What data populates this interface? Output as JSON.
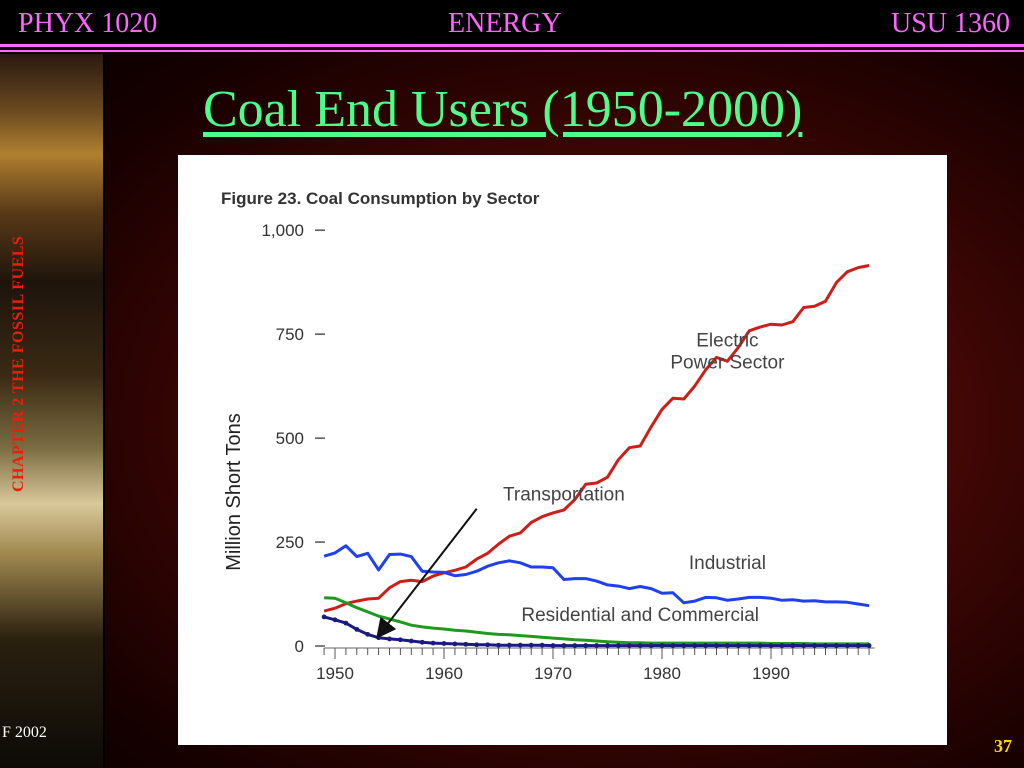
{
  "header": {
    "left": "PHYX 1020",
    "center": "ENERGY",
    "right": "USU 1360"
  },
  "sidebar": {
    "vertical_text": "CHAPTER 2  THE  FOSSIL FUELS"
  },
  "footer": {
    "left_text": "F 2002",
    "page_number": "37"
  },
  "slide": {
    "title": "Coal End Users (1950-2000)"
  },
  "colors": {
    "header_text": "#ff66ff",
    "title": "#4dff88",
    "sidebar_text": "#e8200a",
    "page_number": "#ffd700",
    "electric": "#cc1f1a",
    "industrial": "#1f3ff0",
    "residential": "#1e9a1e",
    "transportation": "#1a1a80"
  },
  "chart_data": {
    "type": "line",
    "title": "Figure 23.  Coal Consumption by Sector",
    "ylabel": "Million Short Tons",
    "xlabel": "",
    "xlim": [
      1950,
      2000
    ],
    "ylim": [
      0,
      1000
    ],
    "yticks": [
      {
        "value": 1000,
        "label": "1,000"
      },
      {
        "value": 750,
        "label": "750"
      },
      {
        "value": 500,
        "label": "500"
      },
      {
        "value": 250,
        "label": "250"
      },
      {
        "value": 0,
        "label": "0"
      }
    ],
    "xticks": [
      {
        "value": 1950,
        "label": "1950"
      },
      {
        "value": 1960,
        "label": "1960"
      },
      {
        "value": 1970,
        "label": "1970"
      },
      {
        "value": 1980,
        "label": "1980"
      },
      {
        "value": 1990,
        "label": "1990"
      }
    ],
    "grid": false,
    "series": [
      {
        "name": "Electric Power Sector",
        "label_lines": [
          "Electric",
          "Power Sector"
        ],
        "label_pos": [
          1986,
          720
        ],
        "color": "#cc1f1a",
        "x": [
          1949,
          1950,
          1951,
          1952,
          1953,
          1954,
          1955,
          1956,
          1957,
          1958,
          1959,
          1960,
          1961,
          1962,
          1963,
          1964,
          1965,
          1966,
          1967,
          1968,
          1969,
          1970,
          1971,
          1972,
          1973,
          1974,
          1975,
          1976,
          1977,
          1978,
          1979,
          1980,
          1981,
          1982,
          1983,
          1984,
          1985,
          1986,
          1987,
          1988,
          1989,
          1990,
          1991,
          1992,
          1993,
          1994,
          1995,
          1996,
          1997,
          1998,
          1999
        ],
        "y": [
          84,
          91,
          102,
          108,
          113,
          115,
          140,
          155,
          158,
          155,
          168,
          176,
          182,
          190,
          209,
          223,
          245,
          264,
          272,
          297,
          311,
          320,
          327,
          352,
          389,
          392,
          406,
          448,
          477,
          481,
          527,
          569,
          596,
          594,
          625,
          664,
          694,
          685,
          718,
          758,
          767,
          774,
          772,
          780,
          814,
          817,
          829,
          874,
          900,
          910,
          915
        ]
      },
      {
        "name": "Industrial",
        "label_pos": [
          1986,
          185
        ],
        "color": "#1f3ff0",
        "x": [
          1949,
          1950,
          1951,
          1952,
          1953,
          1954,
          1955,
          1956,
          1957,
          1958,
          1959,
          1960,
          1961,
          1962,
          1963,
          1964,
          1965,
          1966,
          1967,
          1968,
          1969,
          1970,
          1971,
          1972,
          1973,
          1974,
          1975,
          1976,
          1977,
          1978,
          1979,
          1980,
          1981,
          1982,
          1983,
          1984,
          1985,
          1986,
          1987,
          1988,
          1989,
          1990,
          1991,
          1992,
          1993,
          1994,
          1995,
          1996,
          1997,
          1998,
          1999
        ],
        "y": [
          216,
          224,
          241,
          215,
          223,
          183,
          220,
          221,
          215,
          180,
          178,
          177,
          169,
          172,
          180,
          192,
          200,
          205,
          200,
          190,
          190,
          188,
          160,
          162,
          162,
          156,
          147,
          144,
          138,
          143,
          138,
          127,
          128,
          104,
          108,
          117,
          116,
          110,
          113,
          117,
          117,
          115,
          110,
          111,
          108,
          109,
          106,
          106,
          105,
          101,
          97
        ]
      },
      {
        "name": "Residential and Commercial",
        "label_pos": [
          1978,
          60
        ],
        "color": "#1e9a1e",
        "x": [
          1949,
          1950,
          1951,
          1952,
          1953,
          1954,
          1955,
          1956,
          1957,
          1958,
          1959,
          1960,
          1961,
          1962,
          1963,
          1964,
          1965,
          1966,
          1967,
          1968,
          1969,
          1970,
          1971,
          1972,
          1973,
          1974,
          1975,
          1976,
          1977,
          1978,
          1979,
          1980,
          1981,
          1982,
          1983,
          1984,
          1985,
          1986,
          1987,
          1988,
          1989,
          1990,
          1991,
          1992,
          1993,
          1994,
          1995,
          1996,
          1997,
          1998,
          1999
        ],
        "y": [
          116,
          115,
          104,
          92,
          82,
          72,
          65,
          58,
          50,
          46,
          43,
          41,
          38,
          36,
          33,
          30,
          28,
          27,
          25,
          23,
          21,
          19,
          17,
          15,
          14,
          12,
          10,
          9,
          8,
          8,
          7,
          7,
          7,
          7,
          7,
          7,
          7,
          7,
          7,
          7,
          7,
          6,
          6,
          6,
          6,
          5,
          5,
          5,
          5,
          5,
          5
        ]
      },
      {
        "name": "Transportation",
        "label_pos": [
          1971,
          350
        ],
        "color": "#1a1a80",
        "x": [
          1949,
          1950,
          1951,
          1952,
          1953,
          1954,
          1955,
          1956,
          1957,
          1958,
          1959,
          1960,
          1961,
          1962,
          1963,
          1964,
          1965,
          1966,
          1967,
          1968,
          1969,
          1970,
          1971,
          1972,
          1973,
          1974,
          1975,
          1976,
          1977,
          1978,
          1979,
          1980,
          1981,
          1982,
          1983,
          1984,
          1985,
          1986,
          1987,
          1988,
          1989,
          1990,
          1991,
          1992,
          1993,
          1994,
          1995,
          1996,
          1997,
          1998,
          1999
        ],
        "y": [
          70,
          63,
          55,
          40,
          28,
          20,
          17,
          15,
          12,
          9,
          7,
          6,
          5,
          4,
          3,
          3,
          2,
          2,
          2,
          2,
          2,
          1,
          1,
          1,
          1,
          1,
          1,
          1,
          1,
          1,
          1,
          1,
          1,
          1,
          1,
          1,
          1,
          1,
          1,
          1,
          1,
          1,
          1,
          1,
          1,
          1,
          1,
          1,
          1,
          1,
          1
        ]
      }
    ],
    "annotation_arrow": {
      "from": [
        1963,
        330
      ],
      "to": [
        1954,
        25
      ]
    }
  }
}
